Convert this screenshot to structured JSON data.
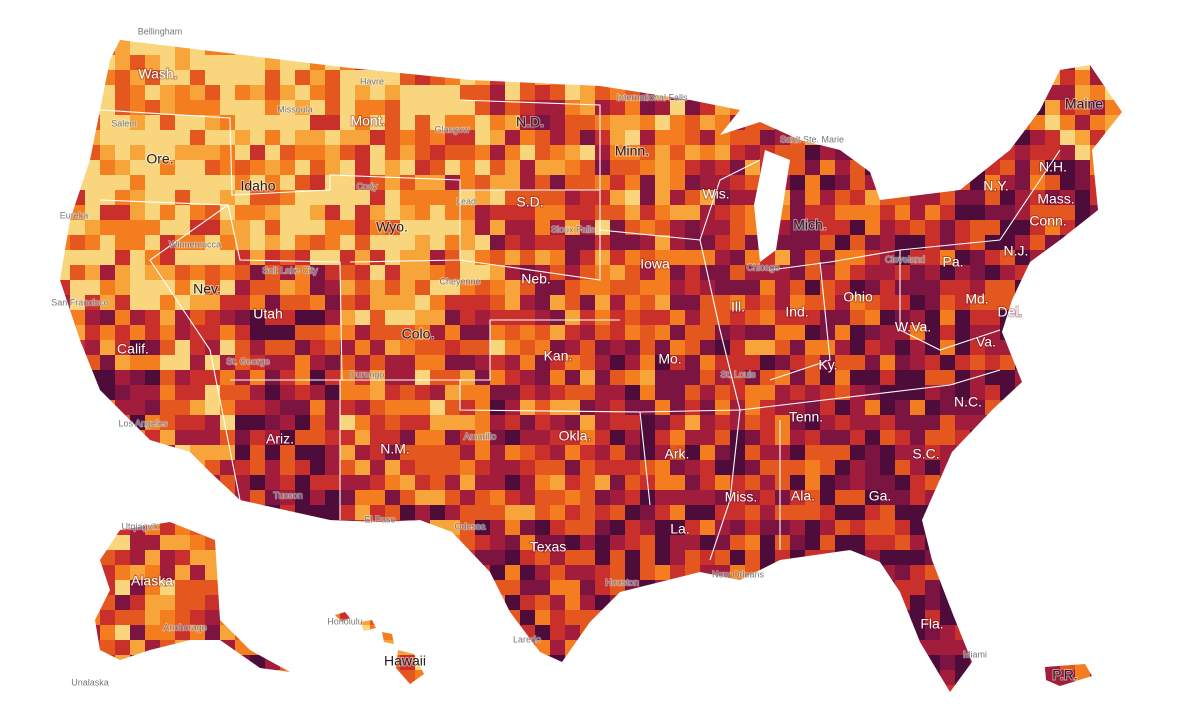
{
  "labels": {
    "states": [
      "Wash.",
      "Ore.",
      "Calif.",
      "Idaho",
      "Nev.",
      "Mont.",
      "Wyo.",
      "Utah",
      "Ariz.",
      "Colo.",
      "N.M.",
      "N.D.",
      "S.D.",
      "Neb.",
      "Kan.",
      "Okla.",
      "Texas",
      "Minn.",
      "Iowa",
      "Mo.",
      "Ark.",
      "La.",
      "Wis.",
      "Ill.",
      "Mich.",
      "Ind.",
      "Ohio",
      "Ky.",
      "Tenn.",
      "Miss.",
      "Ala.",
      "Ga.",
      "Fla.",
      "S.C.",
      "N.C.",
      "Va.",
      "W.Va.",
      "Pa.",
      "N.Y.",
      "Maine",
      "N.H.",
      "Mass.",
      "Conn.",
      "N.J.",
      "Del.",
      "Md.",
      "Alaska",
      "Hawaii",
      "P.R."
    ],
    "cities": [
      "Bellingham",
      "Salem",
      "Eureka",
      "Winnemucca",
      "San Francisco",
      "Los Angeles",
      "Missoula",
      "Havre",
      "Glasgow",
      "Cody",
      "Lead",
      "Salt Lake City",
      "Cheyenne",
      "St. George",
      "Durango",
      "Tucson",
      "El Paso",
      "Odessa",
      "Amarillo",
      "Laredo",
      "Houston",
      "Sioux Falls",
      "International Falls",
      "Sault Ste. Marie",
      "Chicago",
      "Cleveland",
      "St. Louis",
      "New Orleans",
      "Miami",
      "Utqiagvik",
      "Anchorage",
      "Unalaska",
      "Honolulu"
    ]
  }
}
